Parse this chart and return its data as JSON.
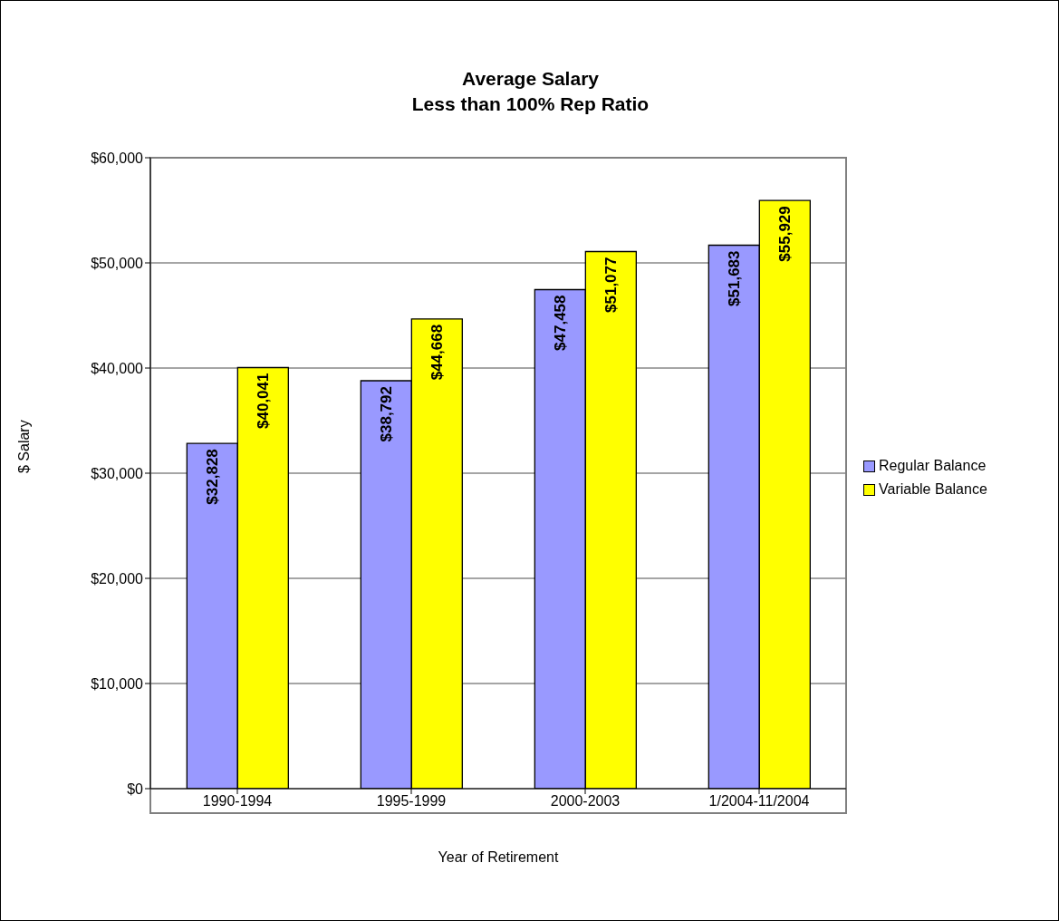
{
  "chart_data": {
    "type": "bar",
    "title": "Average Salary\nLess than 100% Rep Ratio",
    "xlabel": "Year of Retirement",
    "ylabel": "$ Salary",
    "categories": [
      "1990-1994",
      "1995-1999",
      "2000-2003",
      "1/2004-11/2004"
    ],
    "series": [
      {
        "name": "Regular Balance",
        "color": "#9999ff",
        "values": [
          32828,
          38792,
          47458,
          51683
        ],
        "value_labels": [
          "$32,828",
          "$38,792",
          "$47,458",
          "$51,683"
        ]
      },
      {
        "name": "Variable Balance",
        "color": "#ffff00",
        "values": [
          40041,
          44668,
          51077,
          55929
        ],
        "value_labels": [
          "$40,041",
          "$44,668",
          "$51,077",
          "$55,929"
        ]
      }
    ],
    "ylim": [
      0,
      60000
    ],
    "yticks": [
      {
        "value": 0,
        "label": "$0"
      },
      {
        "value": 10000,
        "label": "$10,000"
      },
      {
        "value": 20000,
        "label": "$20,000"
      },
      {
        "value": 30000,
        "label": "$30,000"
      },
      {
        "value": 40000,
        "label": "$40,000"
      },
      {
        "value": 50000,
        "label": "$50,000"
      },
      {
        "value": 60000,
        "label": "$60,000"
      }
    ],
    "grid": "y",
    "legend": "right"
  }
}
